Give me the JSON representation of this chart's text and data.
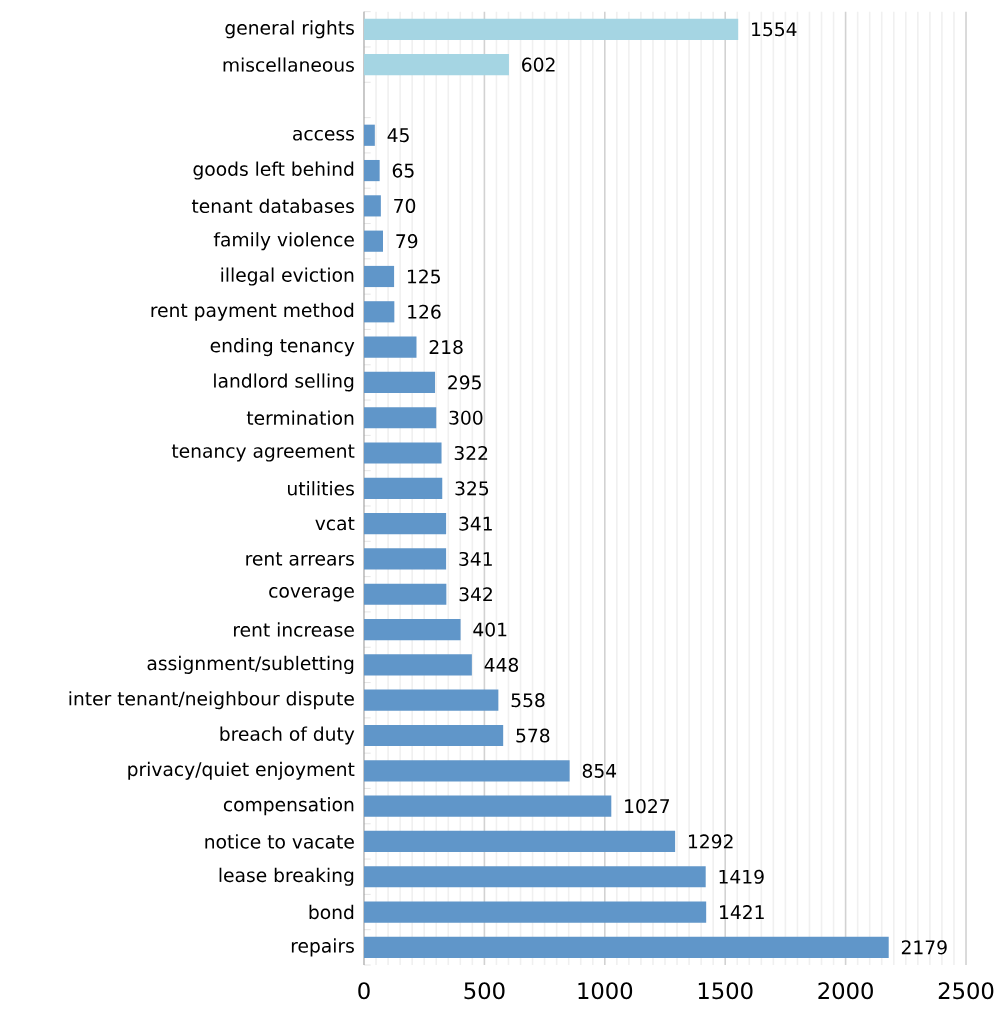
{
  "chart_data": {
    "type": "bar",
    "orientation": "horizontal",
    "categories": [
      "general rights",
      "miscellaneous",
      null,
      "access",
      "goods left behind",
      "tenant databases",
      "family violence",
      "illegal eviction",
      "rent payment method",
      "ending tenancy",
      "landlord selling",
      "termination",
      "tenancy agreement",
      "utilities",
      "vcat",
      "rent arrears",
      "coverage",
      "rent increase",
      "assignment/subletting",
      "inter tenant/neighbour dispute",
      "breach of duty",
      "privacy/quiet enjoyment",
      "compensation",
      "notice to vacate",
      "lease breaking",
      "bond",
      "repairs"
    ],
    "values": [
      1554,
      602,
      null,
      45,
      65,
      70,
      79,
      125,
      126,
      218,
      295,
      300,
      322,
      325,
      341,
      341,
      342,
      401,
      448,
      558,
      578,
      854,
      1027,
      1292,
      1419,
      1421,
      2179
    ],
    "colors": [
      "#a5d5e3",
      "#a5d5e3",
      null,
      "#6096c9",
      "#6096c9",
      "#6096c9",
      "#6096c9",
      "#6096c9",
      "#6096c9",
      "#6096c9",
      "#6096c9",
      "#6096c9",
      "#6096c9",
      "#6096c9",
      "#6096c9",
      "#6096c9",
      "#6096c9",
      "#6096c9",
      "#6096c9",
      "#6096c9",
      "#6096c9",
      "#6096c9",
      "#6096c9",
      "#6096c9",
      "#6096c9",
      "#6096c9",
      "#6096c9"
    ],
    "xlim": [
      0,
      2500
    ],
    "xticks": [
      0,
      500,
      1000,
      1500,
      2000,
      2500
    ],
    "grid": "x",
    "data_labels": true
  }
}
